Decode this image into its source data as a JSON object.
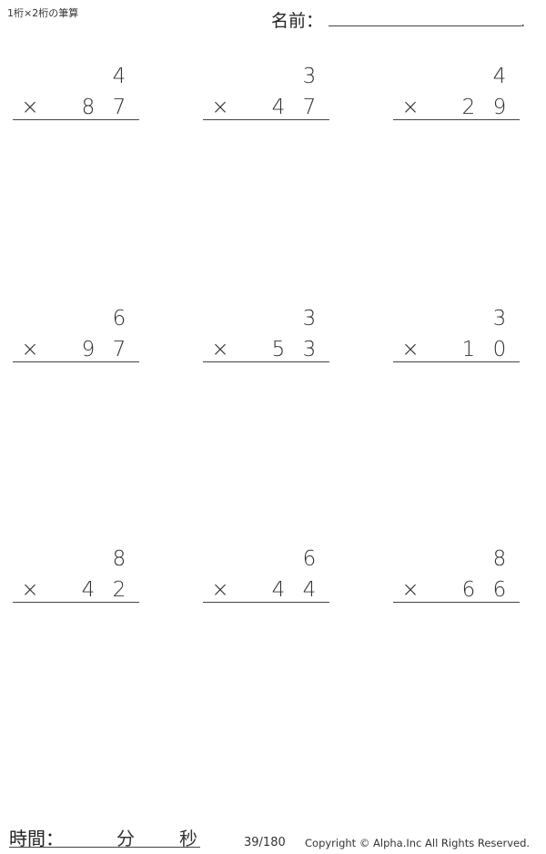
{
  "header": {
    "title": "1桁×2桁の筆算",
    "name_label": "名前：",
    "name_end": "."
  },
  "operator": "×",
  "problems": [
    {
      "top": "4",
      "tens": "8",
      "ones": "7"
    },
    {
      "top": "3",
      "tens": "4",
      "ones": "7"
    },
    {
      "top": "4",
      "tens": "2",
      "ones": "9"
    },
    {
      "top": "6",
      "tens": "9",
      "ones": "7"
    },
    {
      "top": "3",
      "tens": "5",
      "ones": "3"
    },
    {
      "top": "3",
      "tens": "1",
      "ones": "0"
    },
    {
      "top": "8",
      "tens": "4",
      "ones": "2"
    },
    {
      "top": "6",
      "tens": "4",
      "ones": "4"
    },
    {
      "top": "8",
      "tens": "6",
      "ones": "6"
    }
  ],
  "footer": {
    "time_label": "時間：",
    "minutes": "分",
    "seconds": "秒",
    "page": "39/180",
    "copyright": "Copyright © Alpha.Inc All Rights Reserved."
  }
}
